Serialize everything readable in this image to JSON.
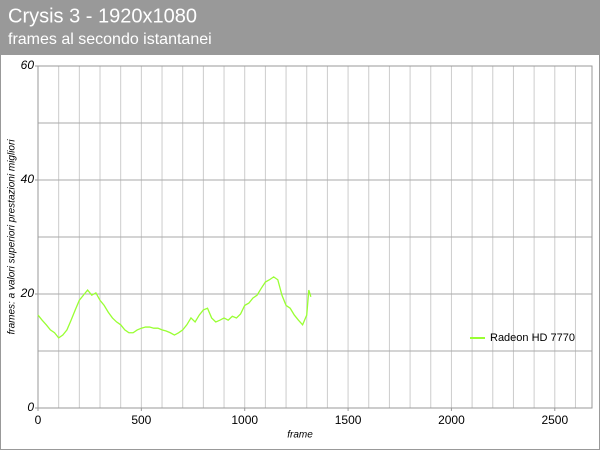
{
  "chart_data": {
    "type": "line",
    "title": "Crysis 3 - 1920x1080",
    "subtitle": "frames al secondo istantanei",
    "x_label": "frame",
    "y_label": "frames: a valori superiori prestazioni migliori",
    "x": [
      0,
      20,
      40,
      60,
      80,
      100,
      120,
      140,
      160,
      180,
      200,
      220,
      240,
      260,
      280,
      300,
      320,
      340,
      360,
      380,
      400,
      420,
      440,
      460,
      480,
      500,
      520,
      540,
      560,
      580,
      600,
      620,
      640,
      660,
      680,
      700,
      720,
      740,
      760,
      780,
      800,
      820,
      840,
      860,
      880,
      900,
      920,
      940,
      960,
      980,
      1000,
      1020,
      1040,
      1060,
      1080,
      1100,
      1120,
      1140,
      1160,
      1180,
      1200,
      1220,
      1240,
      1260,
      1280,
      1300,
      1310,
      1320
    ],
    "series": [
      {
        "name": "Radeon HD 7770",
        "color": "#99ff33",
        "values": [
          16.3,
          15.4,
          14.6,
          13.7,
          13.2,
          12.3,
          12.8,
          13.7,
          15.4,
          17.2,
          18.9,
          19.8,
          20.7,
          19.8,
          20.2,
          18.9,
          18,
          16.8,
          15.8,
          15.1,
          14.6,
          13.7,
          13.2,
          13.2,
          13.7,
          14,
          14.2,
          14.2,
          14,
          14,
          13.7,
          13.5,
          13.2,
          12.8,
          13.2,
          13.7,
          14.6,
          15.8,
          15.1,
          16.3,
          17.2,
          17.5,
          15.8,
          15.1,
          15.4,
          15.8,
          15.4,
          16.1,
          15.8,
          16.5,
          18,
          18.4,
          19.3,
          19.8,
          21,
          22.1,
          22.5,
          23,
          22.5,
          19.8,
          18,
          17.5,
          16.3,
          15.4,
          14.6,
          16.3,
          20.7,
          19.5
        ]
      }
    ],
    "xlim": [
      0,
      2680
    ],
    "ylim": [
      0,
      60
    ],
    "xticks": [
      0,
      500,
      1000,
      1500,
      2000,
      2500
    ],
    "yticks": [
      0,
      20,
      40,
      60
    ],
    "xgrid": [
      100,
      200,
      300,
      400,
      500,
      600,
      700,
      800,
      900,
      1000,
      1100,
      1200,
      1300,
      1400,
      1500,
      1600,
      1700,
      1800,
      1900,
      2000,
      2100,
      2200,
      2300,
      2400,
      2500,
      2600
    ],
    "ygrid": [
      10,
      20,
      30,
      40,
      50
    ],
    "legend": "right"
  }
}
